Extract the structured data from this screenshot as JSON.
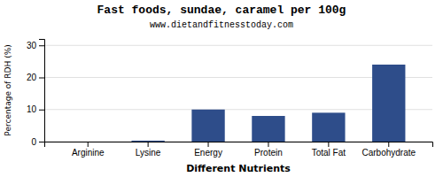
{
  "chart_data": {
    "type": "bar",
    "title": "Fast foods, sundae, caramel per 100g",
    "subtitle": "www.dietandfitnesstoday.com",
    "xlabel": "Different Nutrients",
    "ylabel": "Percentage of RDH (%)",
    "categories": [
      "Arginine",
      "Lysine",
      "Energy",
      "Protein",
      "Total Fat",
      "Carbohydrate"
    ],
    "values": [
      0.0,
      0.3,
      10.0,
      8.0,
      9.0,
      24.0
    ],
    "color": "#2e4d8a",
    "ylim": [
      0,
      32
    ],
    "yticks": [
      0,
      10,
      20,
      30
    ],
    "grid": true
  }
}
